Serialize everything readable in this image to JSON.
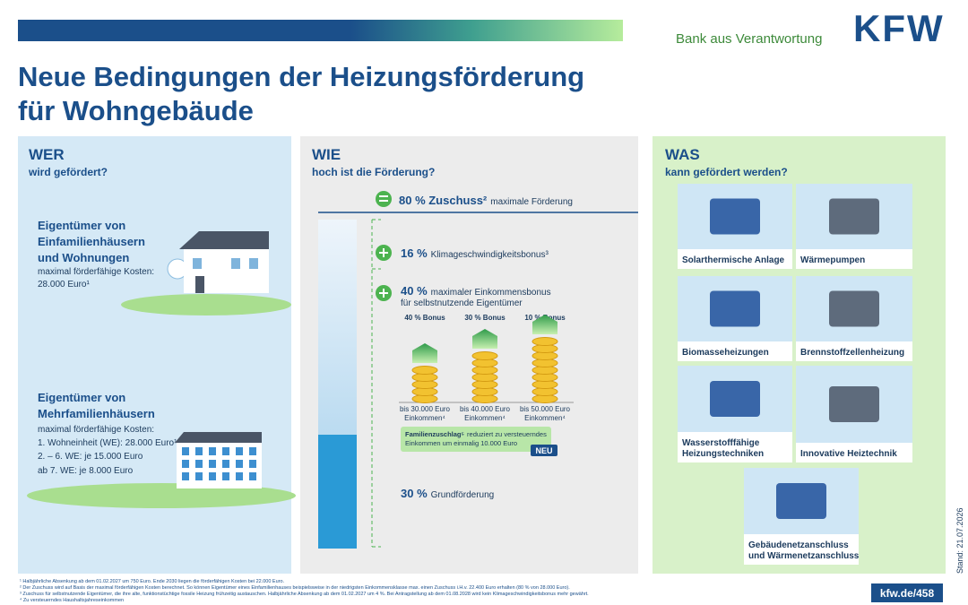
{
  "header": {
    "tagline": "Bank aus Verantwortung",
    "logo": "KFW",
    "title": [
      "Neue Bedingungen der Heizungsförderung",
      "für Wohngebäude"
    ]
  },
  "wer": {
    "heading": "WER",
    "subheading": "wird gefördert?",
    "groups": [
      {
        "title": [
          "Eigentümer von",
          "Einfamilienhäusern",
          "und Wohnungen"
        ],
        "lines": [
          "maximal förderfähige Kosten:",
          "28.000 Euro¹"
        ]
      },
      {
        "title": [
          "Eigentümer von",
          "Mehrfamilienhäusern"
        ],
        "lines": [
          "maximal förderfähige Kosten:",
          "1. Wohneinheit (WE): 28.000 Euro¹",
          "2. – 6. WE: je 15.000 Euro",
          "ab 7. WE: je 8.000 Euro"
        ]
      }
    ]
  },
  "wie": {
    "heading": "WIE",
    "subheading": "hoch ist die Förderung?",
    "total": {
      "amount": "80 % Zuschuss²",
      "text": "maximale Förderung"
    },
    "speed_bonus": {
      "amount": "16 %",
      "text": "Klimageschwindigkeitsbonus³"
    },
    "income_bonus": {
      "amount": "40 %",
      "text": [
        "maximaler Einkommensbonus",
        "für selbstnutzende Eigentümer"
      ]
    },
    "bonus_levels": [
      {
        "label": "40 % Bonus",
        "limit": "bis 30.000 Euro",
        "unit": "Einkommen⁴"
      },
      {
        "label": "30 % Bonus",
        "limit": "bis 40.000 Euro",
        "unit": "Einkommen⁴"
      },
      {
        "label": "10 % Bonus",
        "limit": "bis 50.000 Euro",
        "unit": "Einkommen⁴"
      }
    ],
    "family": {
      "title": "Familienzuschlag⁵",
      "text": [
        "reduziert zu versteuerndes",
        "Einkommen um einmalig 10.000 Euro"
      ],
      "badge": "NEU"
    },
    "base": {
      "amount": "30 %",
      "text": "Grundförderung"
    }
  },
  "was": {
    "heading": "WAS",
    "subheading": "kann gefördert werden?",
    "items": [
      [
        "Solarthermische Anlage"
      ],
      [
        "Wärmepumpen"
      ],
      [
        "Biomasseheizungen"
      ],
      [
        "Brennstoffzellenheizung"
      ],
      [
        "Wasserstofffähige",
        "Heizungstechniken"
      ],
      [
        "Innovative Heiztechnik"
      ],
      [
        "Gebäudenetzanschluss",
        "und Wärmenetzanschluss"
      ]
    ]
  },
  "footnotes": [
    "¹ Halbjährliche Absenkung ab dem 01.02.2027 um 750 Euro. Ende 2030 liegen die förderfähigen Kosten bei 22.000 Euro.",
    "² Der Zuschuss wird auf Basis der maximal förderfähigen Kosten berechnet. So können Eigentümer eines Einfamilienhauses beispielsweise in der niedrigsten Einkommensklasse max. einen Zuschuss i.H.v. 22.400 Euro erhalten (80 % von 28.000 Euro).",
    "³ Zuschuss für selbstnutzende Eigentümer, die ihre alte, funktionstüchtige fossile Heizung frühzeitig austauschen. Halbjährliche Absenkung ab dem 01.02.2027 um 4 %. Bei Antragstellung ab dem 01.08.2028 wird kein Klimageschwindigkeitsbonus mehr gewährt.",
    "⁴ Zu versteuerndes Haushaltsjahreseinkommen"
  ],
  "link": "kfw.de/458",
  "date": "Stand: 21.07.2026"
}
